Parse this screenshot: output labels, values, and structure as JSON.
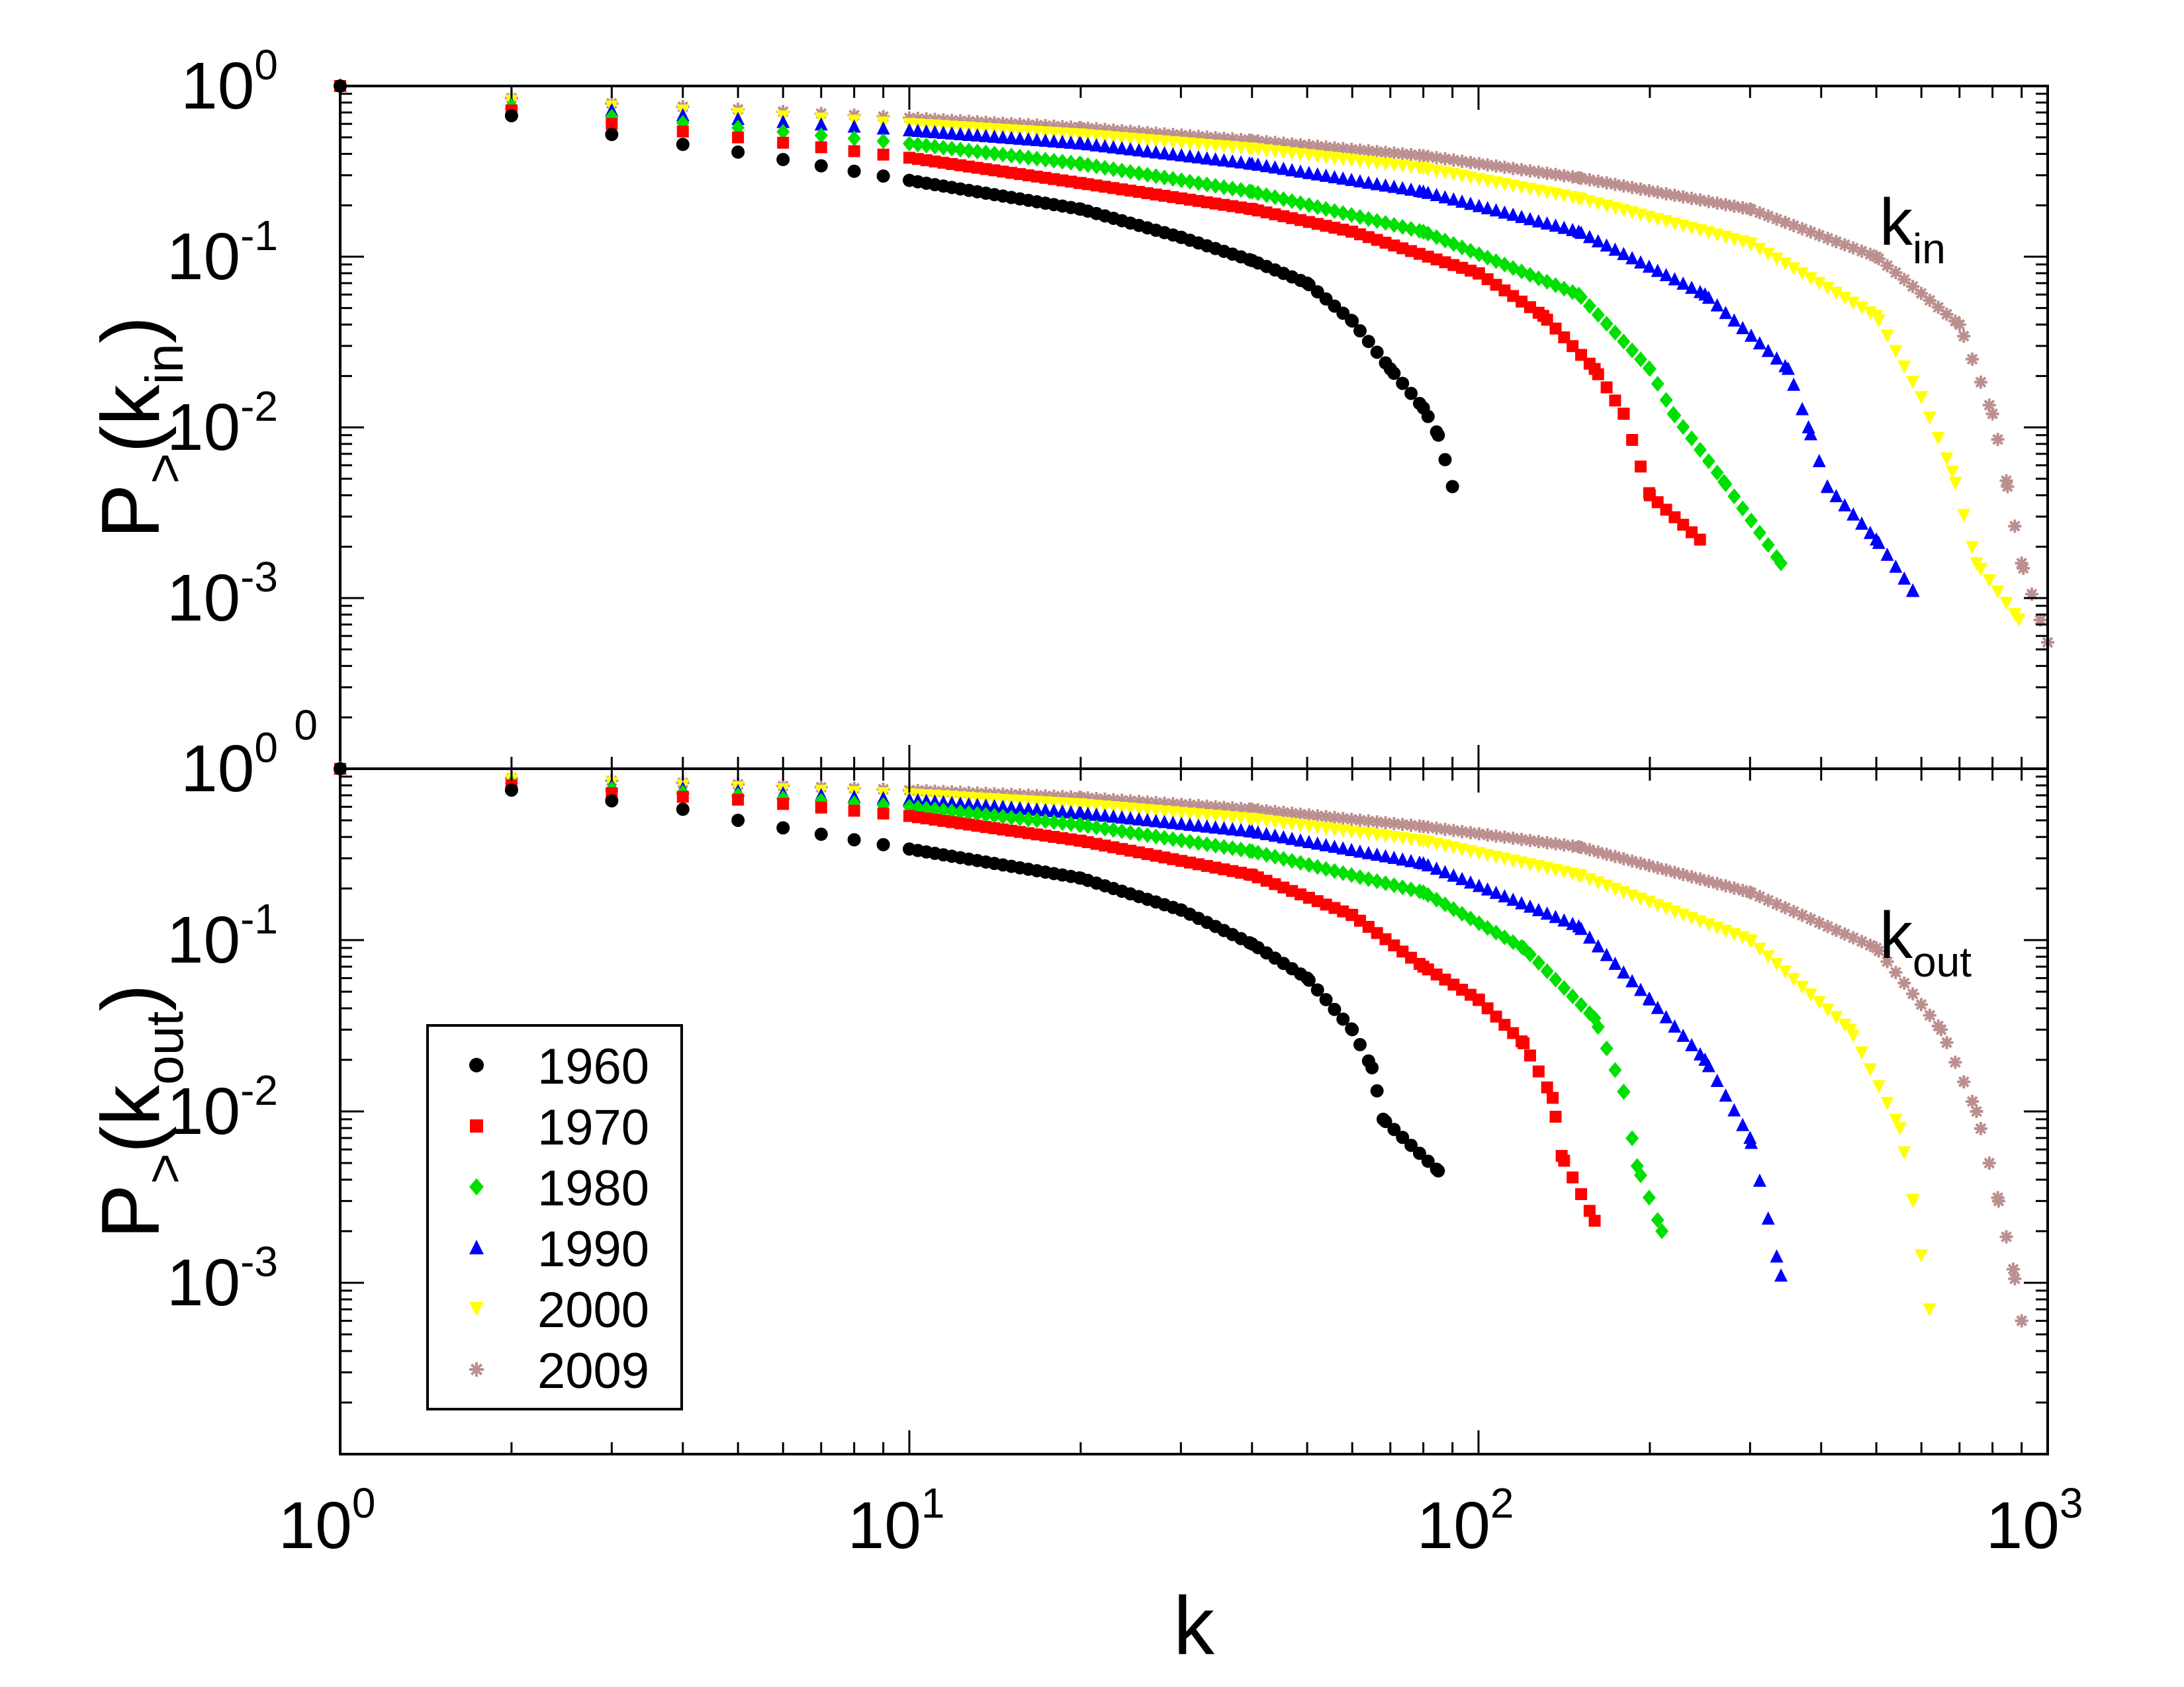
{
  "chart_data": [
    {
      "type": "scatter",
      "panel": "top",
      "scale": "log-log",
      "panel_label": {
        "main": "k",
        "sub": "in"
      },
      "ylabel": {
        "main": "P",
        "sub1": ">",
        "open": "(k",
        "sub2": "in",
        "close": ")"
      },
      "xlim": [
        1,
        1000
      ],
      "ylim": [
        0.0001,
        1
      ],
      "yticks": [
        {
          "base": "10",
          "exp": "0"
        },
        {
          "base": "10",
          "exp": "-1"
        },
        {
          "base": "10",
          "exp": "-2"
        },
        {
          "base": "10",
          "exp": "-3"
        }
      ],
      "series": [
        {
          "name": "1960",
          "anchors": [
            [
              1,
              1
            ],
            [
              2,
              0.67
            ],
            [
              3,
              0.52
            ],
            [
              5,
              0.41
            ],
            [
              10,
              0.28
            ],
            [
              20,
              0.19
            ],
            [
              30,
              0.13
            ],
            [
              40,
              0.095
            ],
            [
              50,
              0.07
            ],
            [
              60,
              0.042
            ],
            [
              70,
              0.022
            ],
            [
              80,
              0.013
            ],
            [
              85,
              0.009
            ],
            [
              90,
              0.0045
            ]
          ]
        },
        {
          "name": "1970",
          "anchors": [
            [
              1,
              1
            ],
            [
              2,
              0.72
            ],
            [
              3,
              0.6
            ],
            [
              5,
              0.5
            ],
            [
              10,
              0.38
            ],
            [
              20,
              0.27
            ],
            [
              40,
              0.19
            ],
            [
              60,
              0.14
            ],
            [
              100,
              0.08
            ],
            [
              130,
              0.045
            ],
            [
              160,
              0.022
            ],
            [
              180,
              0.012
            ],
            [
              200,
              0.004
            ],
            [
              245,
              0.0022
            ]
          ]
        },
        {
          "name": "1980",
          "anchors": [
            [
              1,
              1
            ],
            [
              2,
              0.76
            ],
            [
              3,
              0.66
            ],
            [
              5,
              0.57
            ],
            [
              10,
              0.46
            ],
            [
              20,
              0.35
            ],
            [
              40,
              0.24
            ],
            [
              80,
              0.14
            ],
            [
              150,
              0.06
            ],
            [
              200,
              0.022
            ],
            [
              220,
              0.012
            ],
            [
              270,
              0.0048
            ],
            [
              340,
              0.0016
            ]
          ]
        },
        {
          "name": "1990",
          "anchors": [
            [
              1,
              1
            ],
            [
              2,
              0.79
            ],
            [
              3,
              0.72
            ],
            [
              5,
              0.64
            ],
            [
              10,
              0.55
            ],
            [
              20,
              0.46
            ],
            [
              40,
              0.35
            ],
            [
              80,
              0.24
            ],
            [
              150,
              0.14
            ],
            [
              250,
              0.06
            ],
            [
              350,
              0.022
            ],
            [
              380,
              0.01
            ],
            [
              410,
              0.0045
            ],
            [
              500,
              0.0022
            ],
            [
              580,
              0.0011
            ]
          ]
        },
        {
          "name": "2000",
          "anchors": [
            [
              1,
              1
            ],
            [
              2,
              0.82
            ],
            [
              3,
              0.76
            ],
            [
              5,
              0.69
            ],
            [
              10,
              0.6
            ],
            [
              20,
              0.52
            ],
            [
              40,
              0.43
            ],
            [
              80,
              0.33
            ],
            [
              150,
              0.22
            ],
            [
              300,
              0.12
            ],
            [
              500,
              0.045
            ],
            [
              600,
              0.015
            ],
            [
              680,
              0.0055
            ],
            [
              750,
              0.0016
            ],
            [
              890,
              0.00075
            ]
          ]
        },
        {
          "name": "2009",
          "anchors": [
            [
              1,
              1
            ],
            [
              2,
              0.85
            ],
            [
              3,
              0.79
            ],
            [
              5,
              0.73
            ],
            [
              10,
              0.65
            ],
            [
              20,
              0.57
            ],
            [
              40,
              0.48
            ],
            [
              80,
              0.39
            ],
            [
              150,
              0.29
            ],
            [
              300,
              0.19
            ],
            [
              500,
              0.1
            ],
            [
              700,
              0.04
            ],
            [
              800,
              0.012
            ],
            [
              850,
              0.0045
            ],
            [
              900,
              0.0016
            ],
            [
              1000,
              0.00055
            ]
          ]
        }
      ]
    },
    {
      "type": "scatter",
      "panel": "bottom",
      "scale": "log-log",
      "panel_label": {
        "main": "k",
        "sub": "out"
      },
      "ylabel": {
        "main": "P",
        "sub1": ">",
        "open": "(k",
        "sub2": "out",
        "close": ")"
      },
      "xlim": [
        1,
        1000
      ],
      "ylim": [
        0.0001,
        1
      ],
      "yticks": [
        {
          "base": "10",
          "exp": "0"
        },
        {
          "base": "10",
          "exp": "-1"
        },
        {
          "base": "10",
          "exp": "-2"
        },
        {
          "base": "10",
          "exp": "-3"
        }
      ],
      "series": [
        {
          "name": "1960",
          "anchors": [
            [
              1,
              1
            ],
            [
              2,
              0.75
            ],
            [
              3,
              0.65
            ],
            [
              4,
              0.58
            ],
            [
              5,
              0.5
            ],
            [
              10,
              0.34
            ],
            [
              20,
              0.23
            ],
            [
              30,
              0.15
            ],
            [
              40,
              0.095
            ],
            [
              50,
              0.06
            ],
            [
              60,
              0.03
            ],
            [
              65,
              0.018
            ],
            [
              68,
              0.009
            ],
            [
              85,
              0.0045
            ]
          ]
        },
        {
          "name": "1970",
          "anchors": [
            [
              1,
              1
            ],
            [
              2,
              0.8
            ],
            [
              3,
              0.72
            ],
            [
              5,
              0.66
            ],
            [
              10,
              0.53
            ],
            [
              20,
              0.38
            ],
            [
              40,
              0.24
            ],
            [
              60,
              0.14
            ],
            [
              80,
              0.07
            ],
            [
              100,
              0.045
            ],
            [
              120,
              0.025
            ],
            [
              135,
              0.012
            ],
            [
              140,
              0.0055
            ],
            [
              160,
              0.0023
            ]
          ]
        },
        {
          "name": "1980",
          "anchors": [
            [
              1,
              1
            ],
            [
              2,
              0.82
            ],
            [
              3,
              0.76
            ],
            [
              5,
              0.7
            ],
            [
              10,
              0.6
            ],
            [
              20,
              0.47
            ],
            [
              40,
              0.33
            ],
            [
              80,
              0.19
            ],
            [
              120,
              0.09
            ],
            [
              160,
              0.035
            ],
            [
              180,
              0.013
            ],
            [
              190,
              0.0048
            ],
            [
              210,
              0.002
            ]
          ]
        },
        {
          "name": "1990",
          "anchors": [
            [
              1,
              1
            ],
            [
              2,
              0.84
            ],
            [
              3,
              0.8
            ],
            [
              5,
              0.74
            ],
            [
              10,
              0.66
            ],
            [
              20,
              0.55
            ],
            [
              40,
              0.43
            ],
            [
              80,
              0.28
            ],
            [
              150,
              0.12
            ],
            [
              200,
              0.045
            ],
            [
              250,
              0.02
            ],
            [
              300,
              0.007
            ],
            [
              340,
              0.0011
            ]
          ]
        },
        {
          "name": "2000",
          "anchors": [
            [
              1,
              1
            ],
            [
              2,
              0.86
            ],
            [
              3,
              0.83
            ],
            [
              5,
              0.78
            ],
            [
              10,
              0.71
            ],
            [
              20,
              0.62
            ],
            [
              40,
              0.51
            ],
            [
              80,
              0.38
            ],
            [
              150,
              0.24
            ],
            [
              300,
              0.1
            ],
            [
              450,
              0.03
            ],
            [
              550,
              0.008
            ],
            [
              580,
              0.003
            ],
            [
              620,
              0.0007
            ]
          ]
        },
        {
          "name": "2009",
          "anchors": [
            [
              1,
              1
            ],
            [
              2,
              0.88
            ],
            [
              3,
              0.85
            ],
            [
              5,
              0.81
            ],
            [
              10,
              0.75
            ],
            [
              20,
              0.68
            ],
            [
              40,
              0.58
            ],
            [
              80,
              0.46
            ],
            [
              150,
              0.35
            ],
            [
              300,
              0.19
            ],
            [
              500,
              0.09
            ],
            [
              650,
              0.03
            ],
            [
              750,
              0.01
            ],
            [
              820,
              0.003
            ],
            [
              870,
              0.0012
            ],
            [
              900,
              0.0006
            ]
          ]
        }
      ]
    }
  ],
  "xaxis": {
    "label": "k",
    "ticks": [
      {
        "base": "10",
        "exp": "0"
      },
      {
        "base": "10",
        "exp": "1"
      },
      {
        "base": "10",
        "exp": "2"
      },
      {
        "base": "10",
        "exp": "3"
      }
    ]
  },
  "legend": {
    "placement": "bottom-left of lower panel",
    "items": [
      {
        "label": "1960",
        "marker": "circle",
        "color": "#000000"
      },
      {
        "label": "1970",
        "marker": "square",
        "color": "#ff0000"
      },
      {
        "label": "1980",
        "marker": "diamond",
        "color": "#00e000"
      },
      {
        "label": "1990",
        "marker": "triangle-up",
        "color": "#0000ff"
      },
      {
        "label": "2000",
        "marker": "triangle-down",
        "color": "#ffff00"
      },
      {
        "label": "2009",
        "marker": "star",
        "color": "#bc8f8f"
      }
    ]
  }
}
